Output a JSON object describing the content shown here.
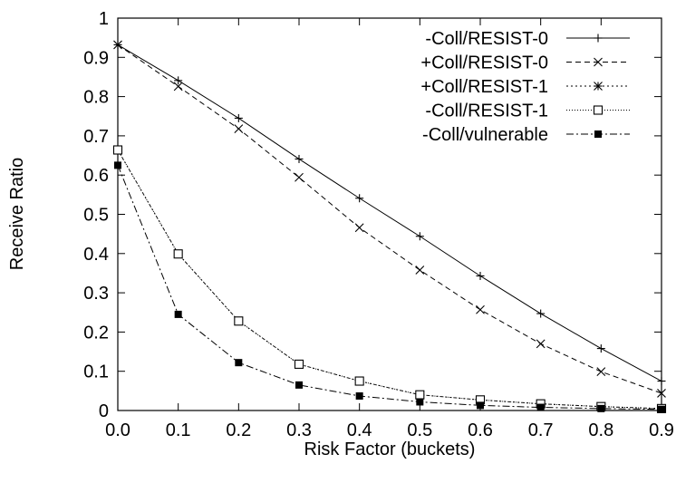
{
  "chart_data": {
    "type": "line",
    "title": "",
    "xlabel": "Risk Factor (buckets)",
    "ylabel": "Receive Ratio",
    "x": [
      0.0,
      0.1,
      0.2,
      0.3,
      0.4,
      0.5,
      0.6,
      0.7,
      0.8,
      0.9
    ],
    "xticks": [
      "0.0",
      "0.1",
      "0.2",
      "0.3",
      "0.4",
      "0.5",
      "0.6",
      "0.7",
      "0.8",
      "0.9"
    ],
    "yticks": [
      "0",
      "0.1",
      "0.2",
      "0.3",
      "0.4",
      "0.5",
      "0.6",
      "0.7",
      "0.8",
      "0.9",
      "1"
    ],
    "xlim": [
      0,
      0.9
    ],
    "ylim": [
      0,
      1
    ],
    "grid": false,
    "legend_position": "top-right",
    "series": [
      {
        "name": "-Coll/RESIST-0",
        "marker": "plus",
        "dash": "solid",
        "values": [
          0.932,
          0.841,
          0.745,
          0.641,
          0.541,
          0.444,
          0.343,
          0.247,
          0.158,
          0.075
        ]
      },
      {
        "name": "+Coll/RESIST-0",
        "marker": "cross",
        "dash": "dashed",
        "values": [
          0.932,
          0.826,
          0.718,
          0.594,
          0.466,
          0.358,
          0.257,
          0.17,
          0.099,
          0.044
        ]
      },
      {
        "name": "+Coll/RESIST-1",
        "marker": "star",
        "dash": "dotted",
        "values": [
          0.664,
          0.399,
          0.228,
          0.118,
          0.075,
          0.04,
          0.027,
          0.017,
          0.01,
          0.005
        ]
      },
      {
        "name": "-Coll/RESIST-1",
        "marker": "open-square",
        "dash": "fine-dotted",
        "values": [
          0.664,
          0.399,
          0.228,
          0.118,
          0.075,
          0.04,
          0.027,
          0.017,
          0.01,
          0.005
        ]
      },
      {
        "name": "-Coll/vulnerable",
        "marker": "filled-square",
        "dash": "dash-dot",
        "values": [
          0.625,
          0.245,
          0.122,
          0.065,
          0.037,
          0.022,
          0.013,
          0.008,
          0.005,
          0.003
        ]
      }
    ]
  }
}
